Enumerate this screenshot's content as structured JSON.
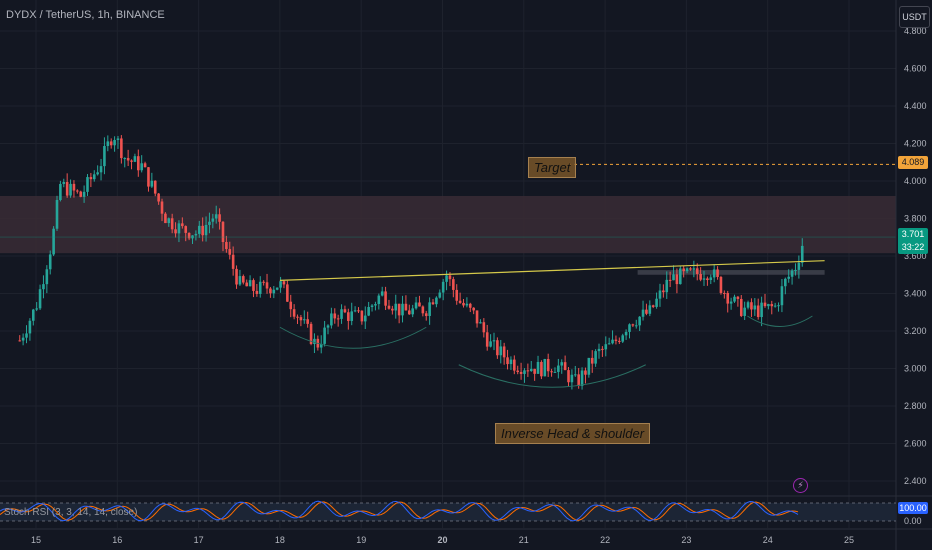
{
  "header": {
    "symbol_line": "DYDX / TetherUS, 1h, BINANCE",
    "currency_button": "USDT"
  },
  "annotations": {
    "target_label": "Target",
    "pattern_label": "Inverse Head & shoulder"
  },
  "price_tags": {
    "target": "4.089",
    "last_price": "3.701",
    "countdown": "33:22"
  },
  "indicator": {
    "legend": "Stoch RSI (3, 3, 14, 14, close)",
    "tag_value": "100.00",
    "axis_labels": [
      "100.00",
      "0.00"
    ],
    "bolt_icon": "lightning-icon"
  },
  "colors": {
    "background": "#131722",
    "up": "#26a69a",
    "down": "#ef5350",
    "resistance_zone": "#3a2b35",
    "neckline": "#d4c84a",
    "target_line": "#f2a43a",
    "stoch_k": "#2962ff",
    "stoch_d": "#ff6d00"
  },
  "chart_data": {
    "type": "candlestick",
    "title": "DYDX / TetherUS, 1h, BINANCE",
    "x_tick_labels": [
      "15",
      "16",
      "17",
      "18",
      "19",
      "20",
      "21",
      "22",
      "23",
      "24",
      "25"
    ],
    "y_tick_labels": [
      "4.800",
      "4.600",
      "4.400",
      "4.200",
      "4.000",
      "3.800",
      "3.600",
      "3.400",
      "3.200",
      "3.000",
      "2.800",
      "2.600",
      "2.400"
    ],
    "ylim": [
      2.31,
      4.86
    ],
    "anchor_path": [
      [
        14.8,
        3.15
      ],
      [
        15.0,
        3.33
      ],
      [
        15.2,
        3.68
      ],
      [
        15.3,
        3.98
      ],
      [
        15.55,
        3.92
      ],
      [
        15.8,
        4.1
      ],
      [
        15.95,
        4.26
      ],
      [
        16.1,
        4.12
      ],
      [
        16.3,
        4.08
      ],
      [
        16.45,
        3.95
      ],
      [
        16.6,
        3.8
      ],
      [
        16.8,
        3.74
      ],
      [
        17.0,
        3.72
      ],
      [
        17.2,
        3.82
      ],
      [
        17.3,
        3.68
      ],
      [
        17.5,
        3.45
      ],
      [
        17.7,
        3.42
      ],
      [
        18.0,
        3.45
      ],
      [
        18.2,
        3.3
      ],
      [
        18.45,
        3.12
      ],
      [
        18.7,
        3.3
      ],
      [
        19.0,
        3.27
      ],
      [
        19.25,
        3.4
      ],
      [
        19.5,
        3.3
      ],
      [
        19.8,
        3.32
      ],
      [
        20.05,
        3.5
      ],
      [
        20.2,
        3.36
      ],
      [
        20.4,
        3.28
      ],
      [
        20.6,
        3.12
      ],
      [
        20.9,
        3.02
      ],
      [
        21.2,
        3.0
      ],
      [
        21.4,
        3.02
      ],
      [
        21.65,
        2.92
      ],
      [
        21.9,
        3.08
      ],
      [
        22.1,
        3.13
      ],
      [
        22.3,
        3.25
      ],
      [
        22.55,
        3.3
      ],
      [
        22.8,
        3.48
      ],
      [
        23.05,
        3.5
      ],
      [
        23.3,
        3.52
      ],
      [
        23.45,
        3.42
      ],
      [
        23.65,
        3.32
      ],
      [
        23.9,
        3.31
      ],
      [
        24.1,
        3.33
      ],
      [
        24.2,
        3.45
      ],
      [
        24.35,
        3.55
      ],
      [
        24.45,
        3.7
      ]
    ],
    "resistance_zone": [
      3.615,
      3.92
    ],
    "last_price": 3.701,
    "target": 4.089,
    "neckline": [
      [
        18.0,
        3.47
      ],
      [
        24.7,
        3.575
      ]
    ],
    "neckline_zone": [
      3.5,
      3.525,
      22.4,
      24.7
    ]
  }
}
